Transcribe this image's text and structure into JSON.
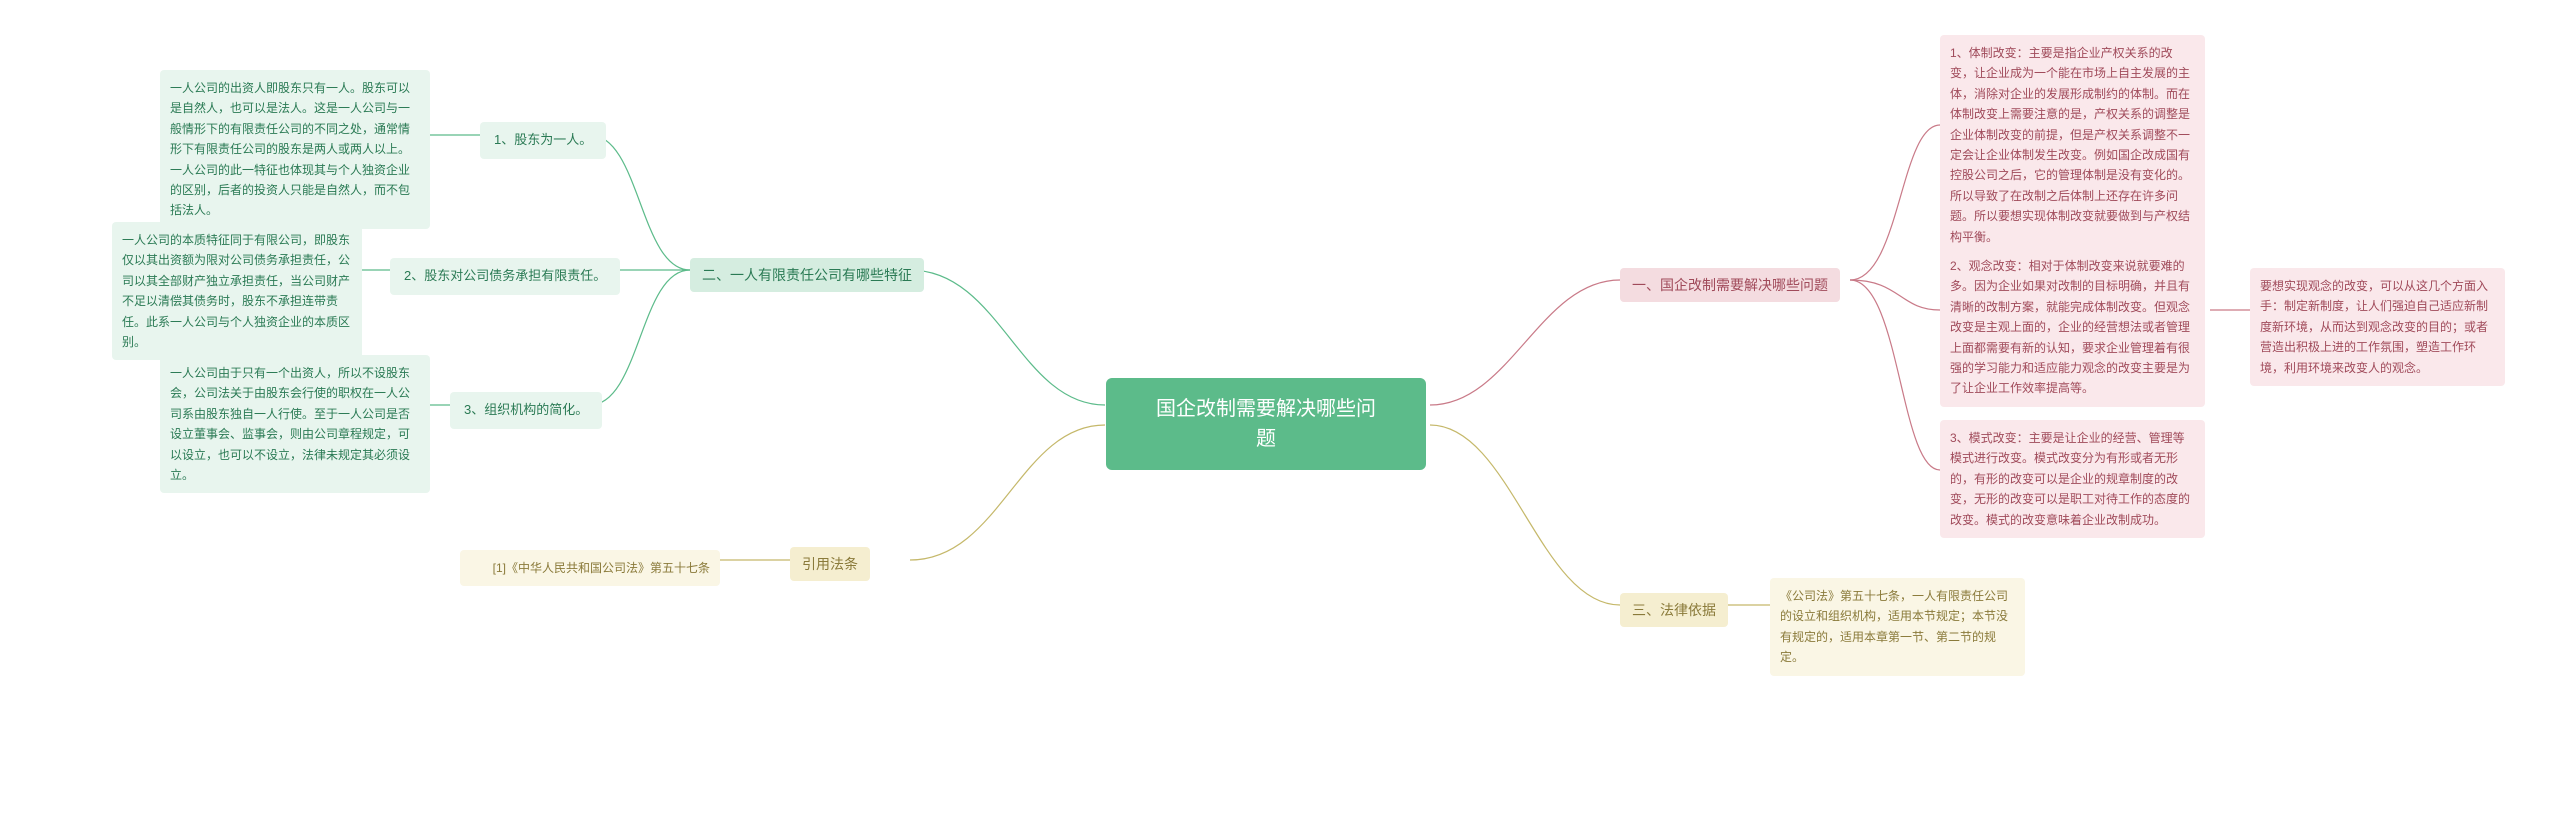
{
  "center": {
    "title": "国企改制需要解决哪些问\n题"
  },
  "colors": {
    "centerBg": "#5cbb8a",
    "greenBg": "#d5ede0",
    "greenFg": "#2a7a54",
    "greenLeafBg": "#e8f5ee",
    "yellowBg": "#f5eed0",
    "yellowFg": "#8a7a3a",
    "yellowLeafBg": "#faf6e5",
    "pinkBg": "#f4dce0",
    "pinkFg": "#a04a5a",
    "pinkLeafBg": "#fae8eb"
  },
  "left": {
    "branch2": {
      "label": "二、一人有限责任公司有哪些特征",
      "items": {
        "i1": {
          "label": "1、股东为一人。",
          "detail": "一人公司的出资人即股东只有一人。股东可以是自然人，也可以是法人。这是一人公司与一般情形下的有限责任公司的不同之处，通常情形下有限责任公司的股东是两人或两人以上。一人公司的此一特征也体现其与个人独资企业的区别，后者的投资人只能是自然人，而不包括法人。"
        },
        "i2": {
          "label": "2、股东对公司债务承担有限责任。",
          "detail": "一人公司的本质特征同于有限公司，即股东仅以其出资额为限对公司债务承担责任，公司以其全部财产独立承担责任，当公司财产不足以清偿其债务时，股东不承担连带责任。此系一人公司与个人独资企业的本质区别。"
        },
        "i3": {
          "label": "3、组织机构的简化。",
          "detail": "一人公司由于只有一个出资人，所以不设股东会，公司法关于由股东会行使的职权在一人公司系由股东独自一人行使。至于一人公司是否设立董事会、监事会，则由公司章程规定，可以设立，也可以不设立，法律未规定其必须设立。"
        }
      }
    },
    "cite": {
      "label": "引用法条",
      "detail": "[1]《中华人民共和国公司法》第五十七条"
    }
  },
  "right": {
    "branch1": {
      "label": "一、国企改制需要解决哪些问题",
      "items": {
        "i1": {
          "detail": "1、体制改变：主要是指企业产权关系的改变，让企业成为一个能在市场上自主发展的主体，消除对企业的发展形成制约的体制。而在体制改变上需要注意的是，产权关系的调整是企业体制改变的前提，但是产权关系调整不一定会让企业体制发生改变。例如国企改成国有控股公司之后，它的管理体制是没有变化的。所以导致了在改制之后体制上还存在许多问题。所以要想实现体制改变就要做到与产权结构平衡。"
        },
        "i2": {
          "detail": "2、观念改变：相对于体制改变来说就要难的多。因为企业如果对改制的目标明确，并且有清晰的改制方案，就能完成体制改变。但观念改变是主观上面的，企业的经营想法或者管理上面都需要有新的认知，要求企业管理着有很强的学习能力和适应能力观念的改变主要是为了让企业工作效率提高等。",
          "extra": "要想实现观念的改变，可以从这几个方面入手：制定新制度，让人们强迫自己适应新制度新环境，从而达到观念改变的目的；或者营造出积极上进的工作氛围，塑造工作环境，利用环境来改变人的观念。"
        },
        "i3": {
          "detail": "3、模式改变：主要是让企业的经营、管理等模式进行改变。模式改变分为有形或者无形的，有形的改变可以是企业的规章制度的改变，无形的改变可以是职工对待工作的态度的改变。模式的改变意味着企业改制成功。"
        }
      }
    },
    "branch3": {
      "label": "三、法律依据",
      "detail": "《公司法》第五十七条，一人有限责任公司的设立和组织机构，适用本节规定；本节没有规定的，适用本章第一节、第二节的规定。"
    }
  }
}
